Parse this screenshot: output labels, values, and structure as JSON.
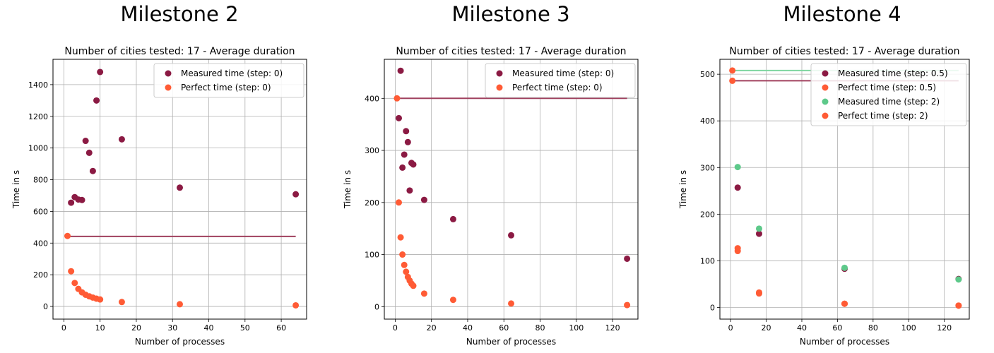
{
  "chart_data": [
    {
      "type": "scatter",
      "heading": "Milestone 2",
      "title": "Number of cities tested: 17 - Average duration",
      "xlabel": "Number of processes",
      "ylabel": "Time in s",
      "xlim": [
        -3,
        67
      ],
      "ylim": [
        -80,
        1560
      ],
      "xticks": [
        0,
        10,
        20,
        30,
        40,
        50,
        60
      ],
      "yticks": [
        0,
        200,
        400,
        600,
        800,
        1000,
        1200,
        1400
      ],
      "grid": true,
      "legend_position": "top-right",
      "series": [
        {
          "name": "Measured time (step: 0)",
          "color": "#8b1a43",
          "x": [
            2,
            3,
            4,
            5,
            6,
            7,
            8,
            9,
            10,
            16,
            32,
            64
          ],
          "y": [
            655,
            690,
            675,
            672,
            1045,
            970,
            855,
            1300,
            1480,
            1055,
            750,
            708
          ]
        },
        {
          "name": "Perfect time (step: 0)",
          "color": "#ff5b35",
          "x": [
            1,
            2,
            3,
            4,
            5,
            6,
            7,
            8,
            9,
            10,
            16,
            32,
            64
          ],
          "y": [
            445,
            222,
            148,
            111,
            89,
            74,
            64,
            56,
            49,
            44,
            28,
            14,
            7
          ]
        }
      ],
      "lines": [
        {
          "color": "#a0405e",
          "x": [
            1,
            64
          ],
          "y": [
            442,
            442
          ]
        }
      ]
    },
    {
      "type": "scatter",
      "heading": "Milestone 3",
      "title": "Number of cities tested: 17 - Average duration",
      "xlabel": "Number of processes",
      "ylabel": "Time in s",
      "xlim": [
        -6,
        134
      ],
      "ylim": [
        -24,
        475
      ],
      "xticks": [
        0,
        20,
        40,
        60,
        80,
        100,
        120
      ],
      "yticks": [
        0,
        100,
        200,
        300,
        400
      ],
      "grid": true,
      "legend_position": "top-right",
      "series": [
        {
          "name": "Measured time (step: 0)",
          "color": "#8b1a43",
          "x": [
            2,
            3,
            4,
            5,
            6,
            7,
            8,
            9,
            10,
            16,
            32,
            64,
            128
          ],
          "y": [
            362,
            453,
            267,
            292,
            337,
            316,
            223,
            276,
            273,
            205,
            168,
            137,
            92
          ]
        },
        {
          "name": "Perfect time (step: 0)",
          "color": "#ff5b35",
          "x": [
            1,
            2,
            3,
            4,
            5,
            6,
            7,
            8,
            9,
            10,
            16,
            32,
            64,
            128
          ],
          "y": [
            400,
            200,
            133,
            100,
            80,
            67,
            57,
            50,
            44,
            40,
            25,
            13,
            6,
            3
          ]
        }
      ],
      "lines": [
        {
          "color": "#a0405e",
          "x": [
            1,
            128
          ],
          "y": [
            400,
            400
          ]
        }
      ]
    },
    {
      "type": "scatter",
      "heading": "Milestone 4",
      "title": "Number of cities tested: 17 - Average duration",
      "xlabel": "Number of processes",
      "ylabel": "Time in s",
      "xlim": [
        -6,
        134
      ],
      "ylim": [
        -25,
        532
      ],
      "xticks": [
        0,
        20,
        40,
        60,
        80,
        100,
        120
      ],
      "yticks": [
        0,
        100,
        200,
        300,
        400,
        500
      ],
      "grid": true,
      "legend_position": "top-right",
      "series": [
        {
          "name": "Measured time (step: 0.5)",
          "color": "#8b1a43",
          "x": [
            4,
            16,
            64,
            128
          ],
          "y": [
            257,
            158,
            83,
            61
          ]
        },
        {
          "name": "Perfect time (step: 0.5)",
          "color": "#ff5b35",
          "x": [
            1,
            4,
            16,
            64,
            128
          ],
          "y": [
            486,
            121,
            30,
            8,
            4
          ]
        },
        {
          "name": "Measured time (step: 2)",
          "color": "#5dc98a",
          "x": [
            4,
            16,
            64,
            128
          ],
          "y": [
            301,
            169,
            85,
            60
          ]
        },
        {
          "name": "Perfect time (step: 2)",
          "color": "#ff5b35",
          "x": [
            1,
            4,
            16,
            64,
            128
          ],
          "y": [
            508,
            127,
            32,
            8,
            4
          ]
        }
      ],
      "lines": [
        {
          "color": "#a0405e",
          "x": [
            1,
            128
          ],
          "y": [
            486,
            486
          ]
        },
        {
          "color": "#7fd6a0",
          "x": [
            1,
            128
          ],
          "y": [
            508,
            508
          ]
        }
      ]
    }
  ]
}
